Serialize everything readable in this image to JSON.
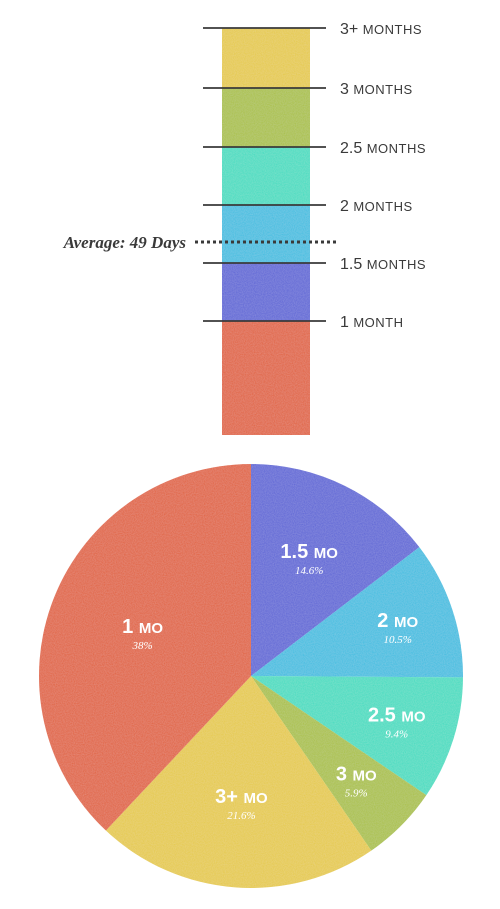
{
  "chart_data": [
    {
      "type": "bar",
      "orientation": "vertical-stacked-scale",
      "categories": [
        "1 month",
        "1.5 months",
        "2 months",
        "2.5 months",
        "3 months",
        "3+ months"
      ],
      "tick_labels": [
        "1 month",
        "1.5 months",
        "2 months",
        "2.5 months",
        "3 months",
        "3+ months"
      ],
      "segment_colors": [
        "#e0603a",
        "#5b64d6",
        "#3bbde0",
        "#3fdcc0",
        "#a9c043",
        "#e5c944"
      ],
      "average": {
        "label": "Average: 49 Days",
        "value_days": 49
      }
    },
    {
      "type": "pie",
      "slices": [
        {
          "label": "1 mo",
          "percent_label": "38%",
          "value": 38,
          "color": "#e0603a"
        },
        {
          "label": "1.5 mo",
          "percent_label": "14.6%",
          "value": 14.6,
          "color": "#5b64d6"
        },
        {
          "label": "2 mo",
          "percent_label": "10.5%",
          "value": 10.5,
          "color": "#3bbde0"
        },
        {
          "label": "2.5 mo",
          "percent_label": "9.4%",
          "value": 9.4,
          "color": "#3fdcc0"
        },
        {
          "label": "3 mo",
          "percent_label": "5.9%",
          "value": 5.9,
          "color": "#a9c043"
        },
        {
          "label": "3+ mo",
          "percent_label": "21.6%",
          "value": 21.6,
          "color": "#e5c944"
        }
      ]
    }
  ]
}
